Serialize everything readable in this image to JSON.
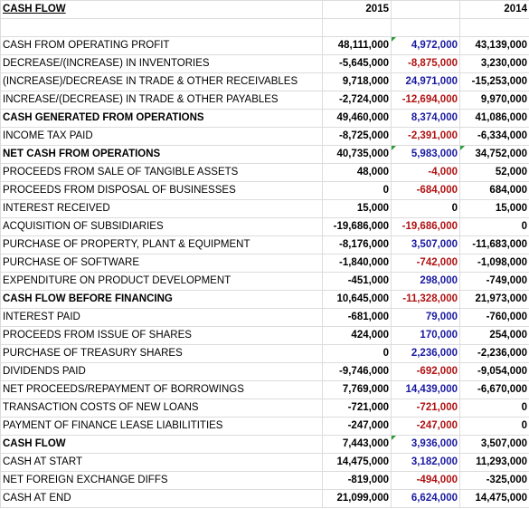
{
  "header": {
    "title": "CASH FLOW",
    "year_2015": "2015",
    "year_2014": "2014"
  },
  "rows": [
    {
      "label": "CASH FROM OPERATING PROFIT",
      "v2015": "48,111,000",
      "diff": "4,972,000",
      "v2014": "43,139,000",
      "bold": false,
      "sign": "pos"
    },
    {
      "label": "DECREASE/(INCREASE) IN INVENTORIES",
      "v2015": "-5,645,000",
      "diff": "-8,875,000",
      "v2014": "3,230,000",
      "bold": false,
      "sign": "neg"
    },
    {
      "label": "(INCREASE)/DECREASE IN TRADE & OTHER RECEIVABLES",
      "v2015": "9,718,000",
      "diff": "24,971,000",
      "v2014": "-15,253,000",
      "bold": false,
      "sign": "pos"
    },
    {
      "label": "INCREASE/(DECREASE) IN TRADE & OTHER PAYABLES",
      "v2015": "-2,724,000",
      "diff": "-12,694,000",
      "v2014": "9,970,000",
      "bold": false,
      "sign": "neg"
    },
    {
      "label": "CASH GENERATED FROM OPERATIONS",
      "v2015": "49,460,000",
      "diff": "8,374,000",
      "v2014": "41,086,000",
      "bold": true,
      "sign": "pos"
    },
    {
      "label": "INCOME TAX PAID",
      "v2015": "-8,725,000",
      "diff": "-2,391,000",
      "v2014": "-6,334,000",
      "bold": false,
      "sign": "neg"
    },
    {
      "label": "NET CASH FROM OPERATIONS",
      "v2015": "40,735,000",
      "diff": "5,983,000",
      "v2014": "34,752,000",
      "bold": true,
      "sign": "pos"
    },
    {
      "label": "PROCEEDS FROM SALE OF TANGIBLE ASSETS",
      "v2015": "48,000",
      "diff": "-4,000",
      "v2014": "52,000",
      "bold": false,
      "sign": "neg"
    },
    {
      "label": "PROCEEDS FROM DISPOSAL OF BUSINESSES",
      "v2015": "0",
      "diff": "-684,000",
      "v2014": "684,000",
      "bold": false,
      "sign": "neg"
    },
    {
      "label": "INTEREST RECEIVED",
      "v2015": "15,000",
      "diff": "0",
      "v2014": "15,000",
      "bold": false,
      "sign": "zero"
    },
    {
      "label": "ACQUISITION OF SUBSIDIARIES",
      "v2015": "-19,686,000",
      "diff": "-19,686,000",
      "v2014": "0",
      "bold": false,
      "sign": "neg"
    },
    {
      "label": "PURCHASE OF PROPERTY, PLANT & EQUIPMENT",
      "v2015": "-8,176,000",
      "diff": "3,507,000",
      "v2014": "-11,683,000",
      "bold": false,
      "sign": "pos"
    },
    {
      "label": "PURCHASE OF SOFTWARE",
      "v2015": "-1,840,000",
      "diff": "-742,000",
      "v2014": "-1,098,000",
      "bold": false,
      "sign": "neg"
    },
    {
      "label": "EXPENDITURE ON PRODUCT DEVELOPMENT",
      "v2015": "-451,000",
      "diff": "298,000",
      "v2014": "-749,000",
      "bold": false,
      "sign": "pos"
    },
    {
      "label": "CASH FLOW BEFORE FINANCING",
      "v2015": "10,645,000",
      "diff": "-11,328,000",
      "v2014": "21,973,000",
      "bold": true,
      "sign": "neg"
    },
    {
      "label": "INTEREST PAID",
      "v2015": "-681,000",
      "diff": "79,000",
      "v2014": "-760,000",
      "bold": false,
      "sign": "pos"
    },
    {
      "label": "PROCEEDS FROM ISSUE OF SHARES",
      "v2015": "424,000",
      "diff": "170,000",
      "v2014": "254,000",
      "bold": false,
      "sign": "pos"
    },
    {
      "label": "PURCHASE OF TREASURY SHARES",
      "v2015": "0",
      "diff": "2,236,000",
      "v2014": "-2,236,000",
      "bold": false,
      "sign": "pos"
    },
    {
      "label": "DIVIDENDS PAID",
      "v2015": "-9,746,000",
      "diff": "-692,000",
      "v2014": "-9,054,000",
      "bold": false,
      "sign": "neg"
    },
    {
      "label": "NET PROCEEDS/REPAYMENT OF BORROWINGS",
      "v2015": "7,769,000",
      "diff": "14,439,000",
      "v2014": "-6,670,000",
      "bold": false,
      "sign": "pos"
    },
    {
      "label": "TRANSACTION COSTS OF NEW LOANS",
      "v2015": "-721,000",
      "diff": "-721,000",
      "v2014": "0",
      "bold": false,
      "sign": "neg"
    },
    {
      "label": "PAYMENT OF FINANCE LEASE LIABILITITIES",
      "v2015": "-247,000",
      "diff": "-247,000",
      "v2014": "0",
      "bold": false,
      "sign": "neg"
    },
    {
      "label": "CASH FLOW",
      "v2015": "7,443,000",
      "diff": "3,936,000",
      "v2014": "3,507,000",
      "bold": true,
      "sign": "pos"
    },
    {
      "label": "CASH AT START",
      "v2015": "14,475,000",
      "diff": "3,182,000",
      "v2014": "11,293,000",
      "bold": false,
      "sign": "pos"
    },
    {
      "label": "NET FOREIGN EXCHANGE DIFFS",
      "v2015": "-819,000",
      "diff": "-494,000",
      "v2014": "-325,000",
      "bold": false,
      "sign": "neg"
    },
    {
      "label": "CASH AT END",
      "v2015": "21,099,000",
      "diff": "6,624,000",
      "v2014": "14,475,000",
      "bold": false,
      "sign": "pos"
    }
  ],
  "colors": {
    "negative_diff": "#b01212",
    "positive_diff": "#1a1aa0",
    "flag": "#2e9b3a"
  }
}
